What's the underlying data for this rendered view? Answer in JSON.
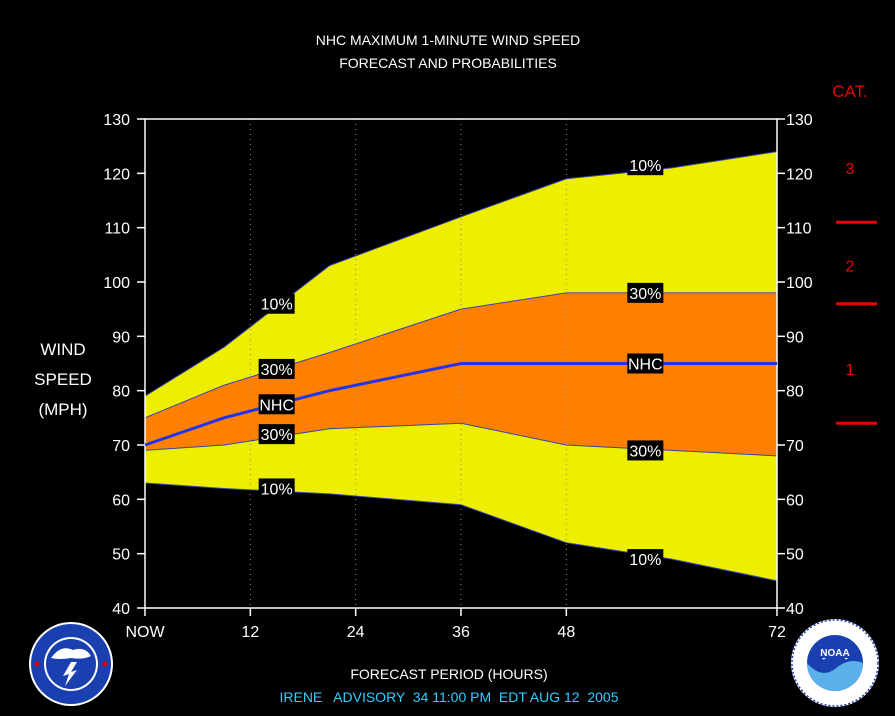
{
  "chart_data": {
    "type": "area",
    "title": "NHC MAXIMUM 1-MINUTE WIND SPEED",
    "subtitle": "FORECAST AND PROBABILITIES",
    "ylabel_lines": [
      "WIND",
      "SPEED",
      "(MPH)"
    ],
    "xlabel": "FORECAST PERIOD (HOURS)",
    "footer": "IRENE   ADVISORY  34 11:00 PM  EDT AUG 12  2005",
    "xlim": [
      0,
      72
    ],
    "ylim": [
      40,
      130
    ],
    "x_ticks": [
      {
        "value": 0,
        "label": "NOW"
      },
      {
        "value": 12,
        "label": "12"
      },
      {
        "value": 24,
        "label": "24"
      },
      {
        "value": 36,
        "label": "36"
      },
      {
        "value": 48,
        "label": "48"
      },
      {
        "value": 72,
        "label": "72"
      }
    ],
    "y_ticks": [
      40,
      50,
      60,
      70,
      80,
      90,
      100,
      110,
      120,
      130
    ],
    "x": [
      0,
      9,
      21,
      36,
      48,
      60,
      72
    ],
    "series": [
      {
        "name": "10%",
        "role": "upper_10",
        "values": [
          79,
          88,
          103,
          112,
          119,
          121,
          124
        ]
      },
      {
        "name": "30%",
        "role": "upper_30",
        "values": [
          75,
          81,
          87,
          95,
          98,
          98,
          98
        ]
      },
      {
        "name": "NHC",
        "role": "nhc",
        "values": [
          70,
          75,
          80,
          85,
          85,
          85,
          85
        ]
      },
      {
        "name": "30%",
        "role": "lower_30",
        "values": [
          69,
          70,
          73,
          74,
          70,
          69,
          68
        ]
      },
      {
        "name": "10%",
        "role": "lower_10",
        "values": [
          63,
          62,
          61,
          59,
          52,
          49,
          45
        ]
      }
    ],
    "labels": [
      {
        "text": "10%",
        "x": 15,
        "y": 96
      },
      {
        "text": "30%",
        "x": 15,
        "y": 84
      },
      {
        "text": "NHC",
        "x": 15,
        "y": 77.5
      },
      {
        "text": "30%",
        "x": 15,
        "y": 72
      },
      {
        "text": "10%",
        "x": 15,
        "y": 62
      },
      {
        "text": "10%",
        "x": 57,
        "y": 121.5
      },
      {
        "text": "30%",
        "x": 57,
        "y": 98
      },
      {
        "text": "NHC",
        "x": 57,
        "y": 85
      },
      {
        "text": "30%",
        "x": 57,
        "y": 69
      },
      {
        "text": "10%",
        "x": 57,
        "y": 49
      }
    ],
    "category_scale": {
      "title": "CAT.",
      "categories": [
        {
          "label": "3",
          "y": 121
        },
        {
          "label": "2",
          "y": 103
        },
        {
          "label": "1",
          "y": 84
        }
      ],
      "thresholds": [
        111,
        96,
        74
      ]
    },
    "colors": {
      "background": "#000000",
      "band_10": "#EEEE00",
      "band_30": "#FF8000",
      "nhc_line": "#2233EE",
      "band_edge": "#3344AA",
      "text": "#FFFFFF",
      "category": "#EE0000",
      "footer": "#33CCFF",
      "label_box": "#000000",
      "grid": "#888888"
    }
  },
  "logos": {
    "left": "national-weather-service-logo",
    "right": "noaa-logo"
  }
}
